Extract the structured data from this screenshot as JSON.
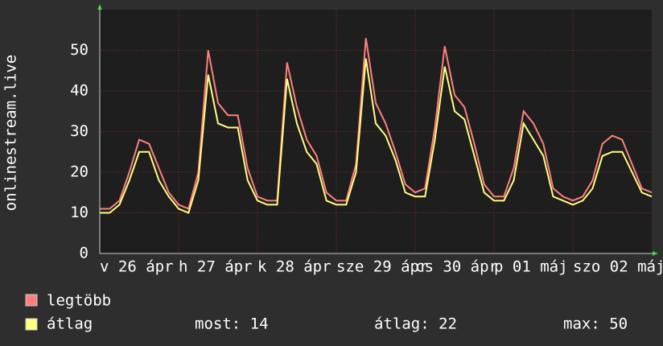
{
  "chart_data": {
    "type": "line",
    "y_label": "onlinestream.live",
    "x": [
      0,
      3,
      6,
      9,
      12,
      15,
      18,
      21,
      24,
      27,
      30,
      33,
      36,
      39,
      42,
      45,
      48,
      51,
      54,
      57,
      60,
      63,
      66,
      69,
      72,
      75,
      78,
      81,
      84,
      87,
      90,
      93,
      96,
      99,
      102,
      105,
      108,
      111,
      114,
      117,
      120,
      123,
      126,
      129,
      132,
      135,
      138,
      141,
      144,
      147,
      150,
      153,
      156,
      159,
      162,
      165,
      168
    ],
    "series": [
      {
        "name": "legtöbb",
        "color": "#ff7f7f",
        "values": [
          11,
          11,
          13,
          20,
          28,
          27,
          21,
          15,
          12,
          11,
          20,
          50,
          37,
          34,
          34,
          21,
          14,
          13,
          13,
          47,
          36,
          28,
          24,
          15,
          13,
          13,
          22,
          53,
          37,
          32,
          25,
          17,
          15,
          16,
          31,
          51,
          39,
          36,
          27,
          17,
          14,
          14,
          21,
          35,
          32,
          27,
          16,
          14,
          13,
          14,
          18,
          27,
          29,
          28,
          22,
          16,
          15
        ]
      },
      {
        "name": "átlag",
        "color": "#ffff80",
        "values": [
          10,
          10,
          12,
          18,
          25,
          25,
          18,
          14,
          11,
          10,
          18,
          44,
          32,
          31,
          31,
          18,
          13,
          12,
          12,
          43,
          32,
          25,
          22,
          13,
          12,
          12,
          20,
          48,
          32,
          29,
          23,
          15,
          14,
          14,
          28,
          46,
          35,
          33,
          24,
          15,
          13,
          13,
          18,
          32,
          28,
          24,
          14,
          13,
          12,
          13,
          16,
          24,
          25,
          25,
          20,
          15,
          14
        ]
      }
    ],
    "stats": [
      "most: 14",
      "átlag: 22",
      "max: 50"
    ],
    "xlim": [
      0,
      168
    ],
    "xticks": [
      {
        "value": 0,
        "label": "v 26 ápr"
      },
      {
        "value": 24,
        "label": "h 27 ápr"
      },
      {
        "value": 48,
        "label": "k 28 ápr"
      },
      {
        "value": 72,
        "label": "sze 29 ápr"
      },
      {
        "value": 96,
        "label": "cs 30 ápr"
      },
      {
        "value": 120,
        "label": "p 01 máj"
      },
      {
        "value": 144,
        "label": "szo 02 máj"
      }
    ],
    "ylim": [
      0,
      60
    ],
    "yticks": [
      0,
      10,
      20,
      30,
      40,
      50
    ],
    "grid": true
  }
}
